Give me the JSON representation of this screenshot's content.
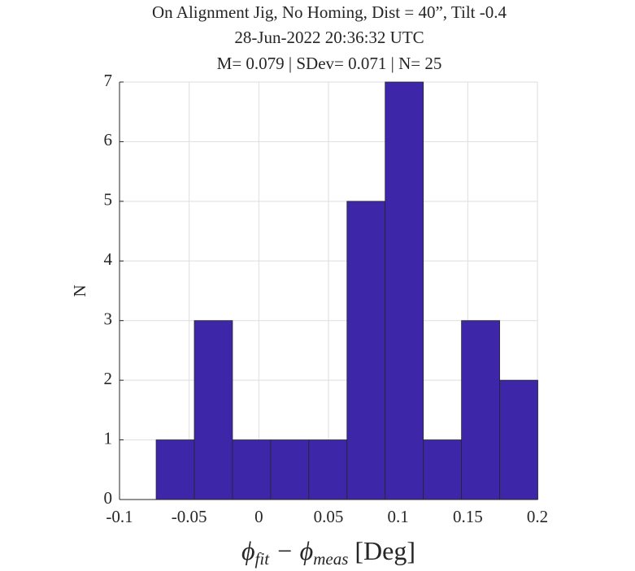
{
  "chart_data": {
    "type": "histogram",
    "title": [
      "On Alignment Jig, No Homing, Dist = 40”, Tilt -0.4",
      "28-Jun-2022 20:36:32 UTC",
      "M= 0.079 | SDev= 0.071 | N= 25"
    ],
    "xlabel": [
      "ϕ",
      "fit",
      " − ϕ",
      "meas",
      " [Deg]"
    ],
    "ylabel": "N",
    "bins": [
      -0.0737,
      -0.0463,
      -0.0189,
      0.0085,
      0.0359,
      0.0633,
      0.0907,
      0.1181,
      0.1455,
      0.1729,
      0.2003
    ],
    "values": [
      1,
      3,
      1,
      1,
      1,
      5,
      7,
      1,
      3,
      2
    ],
    "color": "#3d26a8",
    "xlim": [
      -0.1,
      0.2
    ],
    "xticks": [
      -0.1,
      -0.05,
      0,
      0.05,
      0.1,
      0.15,
      0.2
    ],
    "ylim": [
      0,
      7
    ],
    "yticks": [
      0,
      1,
      2,
      3,
      4,
      5,
      6,
      7
    ],
    "grid": true
  }
}
